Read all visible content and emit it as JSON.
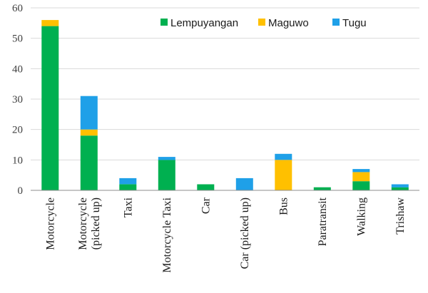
{
  "chart_data": {
    "type": "bar",
    "stacked": true,
    "categories": [
      [
        "Motorcycle"
      ],
      [
        "Motorcycle",
        "(picked up)"
      ],
      [
        "Taxi"
      ],
      [
        "Motorcycle Taxi"
      ],
      [
        "Car"
      ],
      [
        "Car (picked up)"
      ],
      [
        "Bus"
      ],
      [
        "Paratransit"
      ],
      [
        "Walking"
      ],
      [
        "Trishaw"
      ]
    ],
    "series": [
      {
        "name": "Lempuyangan",
        "color": "#00b050",
        "values": [
          54,
          18,
          2,
          10,
          2,
          0,
          0,
          1,
          3,
          1
        ]
      },
      {
        "name": "Maguwo",
        "color": "#ffc000",
        "values": [
          2,
          2,
          0,
          0,
          0,
          0,
          10,
          0,
          3,
          0
        ]
      },
      {
        "name": "Tugu",
        "color": "#1fa0e8",
        "values": [
          0,
          11,
          2,
          1,
          0,
          4,
          2,
          0,
          1,
          1
        ]
      }
    ],
    "ylim": [
      0,
      60
    ],
    "yticks": [
      0,
      10,
      20,
      30,
      40,
      50,
      60
    ],
    "grid": true,
    "legend": "top-right"
  }
}
